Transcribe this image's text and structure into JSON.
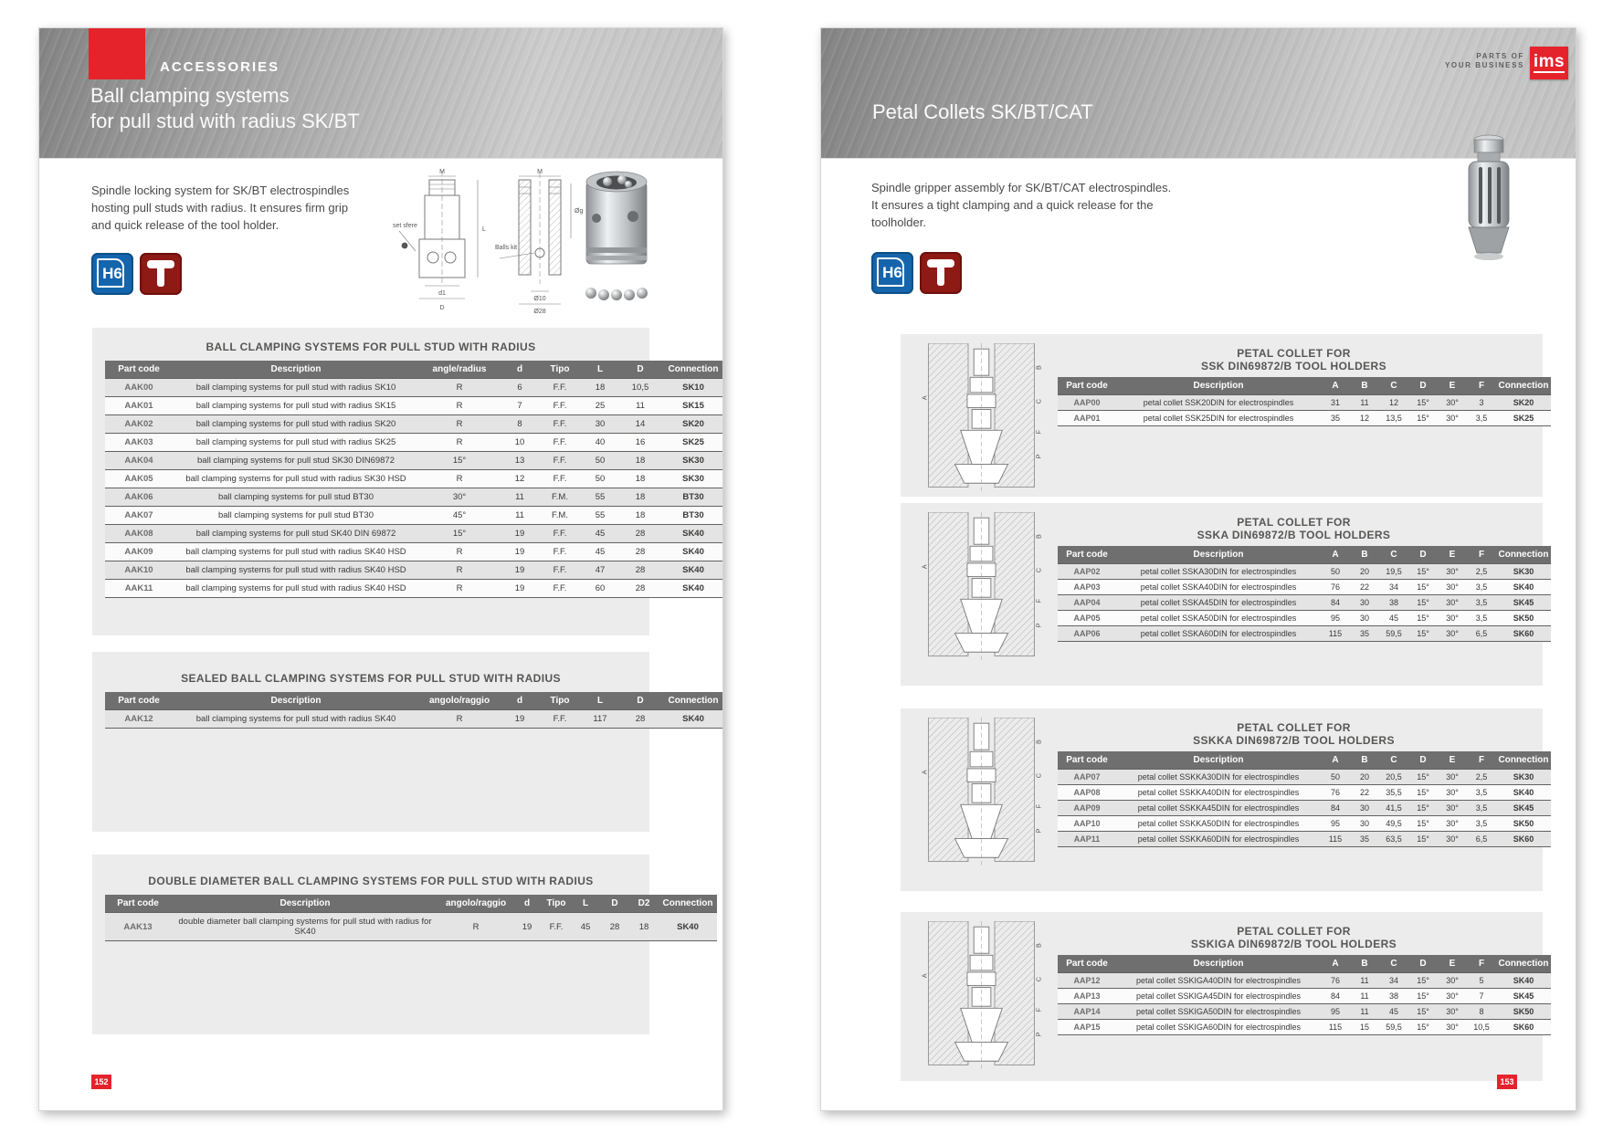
{
  "colors": {
    "accent_red": "#e5232b",
    "badge_blue": "#1565ad",
    "badge_dark_red": "#8e1a15",
    "table_header": "#706f6f",
    "panel_bg": "#ececec"
  },
  "left_page": {
    "eyebrow": "ACCESSORIES",
    "title_lines": [
      "Ball clamping systems",
      "for pull stud with radius SK/BT"
    ],
    "description_lines": [
      "Spindle locking system for SK/BT electrospindles",
      "hosting pull studs with radius. It ensures firm grip",
      "and quick release of the tool holder."
    ],
    "badge_h6": "H6",
    "page_number": "152",
    "diagram1_labels": {
      "m": "M",
      "set_sfere": "set sfere",
      "d1": "d1",
      "d": "D",
      "l": "L"
    },
    "diagram2_labels": {
      "m": "M",
      "og": "Øg",
      "balls_kit": "Balls kit",
      "o10": "Ø10",
      "o28": "Ø28"
    },
    "tables": [
      {
        "title_lines": [
          "BALL CLAMPING SYSTEMS FOR PULL STUD WITH RADIUS"
        ],
        "columns": [
          "Part code",
          "Description",
          "angle/radius",
          "d",
          "Tipo",
          "L",
          "D",
          "Connection"
        ],
        "rows": [
          [
            "AAK00",
            "ball clamping systems for pull stud with radius SK10",
            "R",
            "6",
            "F.F.",
            "18",
            "10,5",
            "SK10"
          ],
          [
            "AAK01",
            "ball clamping systems for pull stud with radius SK15",
            "R",
            "7",
            "F.F.",
            "25",
            "11",
            "SK15"
          ],
          [
            "AAK02",
            "ball clamping systems for pull stud with radius SK20",
            "R",
            "8",
            "F.F.",
            "30",
            "14",
            "SK20"
          ],
          [
            "AAK03",
            "ball clamping systems for pull stud with radius SK25",
            "R",
            "10",
            "F.F.",
            "40",
            "16",
            "SK25"
          ],
          [
            "AAK04",
            "ball clamping systems for pull stud SK30 DIN69872",
            "15°",
            "13",
            "F.F.",
            "50",
            "18",
            "SK30"
          ],
          [
            "AAK05",
            "ball clamping systems for pull stud with radius SK30 HSD",
            "R",
            "12",
            "F.F.",
            "50",
            "18",
            "SK30"
          ],
          [
            "AAK06",
            "ball clamping systems for pull stud BT30",
            "30°",
            "11",
            "F.M.",
            "55",
            "18",
            "BT30"
          ],
          [
            "AAK07",
            "ball clamping systems for pull stud BT30",
            "45°",
            "11",
            "F.M.",
            "55",
            "18",
            "BT30"
          ],
          [
            "AAK08",
            "ball clamping systems for pull stud SK40 DIN 69872",
            "15°",
            "19",
            "F.F.",
            "45",
            "28",
            "SK40"
          ],
          [
            "AAK09",
            "ball clamping systems for pull stud with radius SK40 HSD",
            "R",
            "19",
            "F.F.",
            "45",
            "28",
            "SK40"
          ],
          [
            "AAK10",
            "ball clamping systems for pull stud with radius SK40 HSD",
            "R",
            "19",
            "F.F.",
            "47",
            "28",
            "SK40"
          ],
          [
            "AAK11",
            "ball clamping systems for pull stud with radius SK40 HSD",
            "R",
            "19",
            "F.F.",
            "60",
            "28",
            "SK40"
          ]
        ]
      },
      {
        "title_lines": [
          "SEALED BALL CLAMPING SYSTEMS FOR PULL STUD WITH RADIUS"
        ],
        "columns": [
          "Part code",
          "Description",
          "angolo/raggio",
          "d",
          "Tipo",
          "L",
          "D",
          "Connection"
        ],
        "rows": [
          [
            "AAK12",
            "ball clamping systems for pull stud with radius SK40",
            "R",
            "19",
            "F.F.",
            "117",
            "28",
            "SK40"
          ]
        ]
      },
      {
        "title_lines": [
          "DOUBLE DIAMETER BALL CLAMPING SYSTEMS FOR PULL STUD WITH RADIUS"
        ],
        "columns": [
          "Part code",
          "Description",
          "angolo/raggio",
          "d",
          "Tipo",
          "L",
          "D",
          "D2",
          "Connection"
        ],
        "rows": [
          [
            "AAK13",
            "double diameter ball clamping systems for pull stud with radius for SK40",
            "R",
            "19",
            "F.F.",
            "45",
            "28",
            "18",
            "SK40"
          ]
        ]
      }
    ]
  },
  "right_page": {
    "brand": {
      "tagline_lines": [
        "PARTS OF",
        "YOUR BUSINESS"
      ],
      "logo_text": "ims"
    },
    "title": "Petal Collets SK/BT/CAT",
    "description_lines": [
      "Spindle gripper assembly for SK/BT/CAT electrospindles.",
      "It ensures a tight clamping and a quick release for the",
      "toolholder."
    ],
    "badge_h6": "H6",
    "page_number": "153",
    "diagram_labels": {
      "a": "A",
      "b": "B",
      "c": "C",
      "f": "F",
      "p": "P"
    },
    "tables": [
      {
        "title_lines": [
          "PETAL COLLET FOR",
          "SSK DIN69872/B TOOL HOLDERS"
        ],
        "columns": [
          "Part code",
          "Description",
          "A",
          "B",
          "C",
          "D",
          "E",
          "F",
          "Connection"
        ],
        "rows": [
          [
            "AAP00",
            "petal collet SSK20DIN for electrospindles",
            "31",
            "11",
            "12",
            "15°",
            "30°",
            "3",
            "SK20"
          ],
          [
            "AAP01",
            "petal collet SSK25DIN for electrospindles",
            "35",
            "12",
            "13,5",
            "15°",
            "30°",
            "3,5",
            "SK25"
          ]
        ]
      },
      {
        "title_lines": [
          "PETAL COLLET FOR",
          "SSKA DIN69872/B TOOL HOLDERS"
        ],
        "columns": [
          "Part code",
          "Description",
          "A",
          "B",
          "C",
          "D",
          "E",
          "F",
          "Connection"
        ],
        "rows": [
          [
            "AAP02",
            "petal collet SSKA30DIN for electrospindles",
            "50",
            "20",
            "19,5",
            "15°",
            "30°",
            "2,5",
            "SK30"
          ],
          [
            "AAP03",
            "petal collet SSKA40DIN for electrospindles",
            "76",
            "22",
            "34",
            "15°",
            "30°",
            "3,5",
            "SK40"
          ],
          [
            "AAP04",
            "petal collet SSKA45DIN for electrospindles",
            "84",
            "30",
            "38",
            "15°",
            "30°",
            "3,5",
            "SK45"
          ],
          [
            "AAP05",
            "petal collet SSKA50DIN for electrospindles",
            "95",
            "30",
            "45",
            "15°",
            "30°",
            "3,5",
            "SK50"
          ],
          [
            "AAP06",
            "petal collet SSKA60DIN for electrospindles",
            "115",
            "35",
            "59,5",
            "15°",
            "30°",
            "6,5",
            "SK60"
          ]
        ]
      },
      {
        "title_lines": [
          "PETAL COLLET FOR",
          "SSKKA DIN69872/B TOOL HOLDERS"
        ],
        "columns": [
          "Part code",
          "Description",
          "A",
          "B",
          "C",
          "D",
          "E",
          "F",
          "Connection"
        ],
        "rows": [
          [
            "AAP07",
            "petal collet SSKKA30DIN for electrospindles",
            "50",
            "20",
            "20,5",
            "15°",
            "30°",
            "2,5",
            "SK30"
          ],
          [
            "AAP08",
            "petal collet SSKKA40DIN for electrospindles",
            "76",
            "22",
            "35,5",
            "15°",
            "30°",
            "3,5",
            "SK40"
          ],
          [
            "AAP09",
            "petal collet SSKKA45DIN for electrospindles",
            "84",
            "30",
            "41,5",
            "15°",
            "30°",
            "3,5",
            "SK45"
          ],
          [
            "AAP10",
            "petal collet SSKKA50DIN for electrospindles",
            "95",
            "30",
            "49,5",
            "15°",
            "30°",
            "3,5",
            "SK50"
          ],
          [
            "AAP11",
            "petal collet SSKKA60DIN for electrospindles",
            "115",
            "35",
            "63,5",
            "15°",
            "30°",
            "6,5",
            "SK60"
          ]
        ]
      },
      {
        "title_lines": [
          "PETAL COLLET FOR",
          "SSKIGA DIN69872/B TOOL HOLDERS"
        ],
        "columns": [
          "Part code",
          "Description",
          "A",
          "B",
          "C",
          "D",
          "E",
          "F",
          "Connection"
        ],
        "rows": [
          [
            "AAP12",
            "petal collet SSKIGA40DIN for electrospindles",
            "76",
            "11",
            "34",
            "15°",
            "30°",
            "5",
            "SK40"
          ],
          [
            "AAP13",
            "petal collet SSKIGA45DIN for electrospindles",
            "84",
            "11",
            "38",
            "15°",
            "30°",
            "7",
            "SK45"
          ],
          [
            "AAP14",
            "petal collet SSKIGA50DIN for electrospindles",
            "95",
            "11",
            "45",
            "15°",
            "30°",
            "8",
            "SK50"
          ],
          [
            "AAP15",
            "petal collet SSKIGA60DIN for electrospindles",
            "115",
            "15",
            "59,5",
            "15°",
            "30°",
            "10,5",
            "SK60"
          ]
        ]
      }
    ]
  }
}
